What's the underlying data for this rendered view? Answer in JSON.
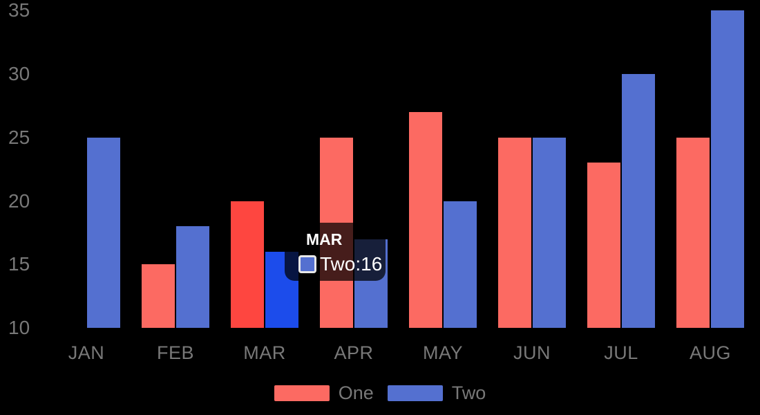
{
  "chart_data": {
    "type": "bar",
    "categories": [
      "JAN",
      "FEB",
      "MAR",
      "APR",
      "MAY",
      "JUN",
      "JUL",
      "AUG"
    ],
    "series": [
      {
        "name": "One",
        "color": "#FC6A62",
        "emphasis_color": "#FE4640",
        "values": [
          null,
          15,
          20,
          25,
          27,
          25,
          23,
          25
        ]
      },
      {
        "name": "Two",
        "color": "#5470D0",
        "emphasis_color": "#1C4CEB",
        "values": [
          25,
          18,
          16,
          17,
          20,
          25,
          30,
          35
        ]
      }
    ],
    "highlighted_category": "MAR",
    "yticks": [
      10,
      15,
      20,
      25,
      30,
      35
    ],
    "ylim": [
      10,
      35
    ],
    "grid": false,
    "legend_position": "bottom"
  },
  "legend": {
    "items": [
      {
        "label": "One"
      },
      {
        "label": "Two"
      }
    ]
  },
  "tooltip": {
    "title": "MAR",
    "series_label": "Two:",
    "value": "16"
  },
  "colors": {
    "background": "#000000",
    "axis_text": "#787878",
    "legend_text": "#787878",
    "tooltip_bg": "rgba(0,0,0,0.72)",
    "tooltip_text": "#FFFFFF",
    "tooltip_swatch_border": "#E8E8E8"
  }
}
